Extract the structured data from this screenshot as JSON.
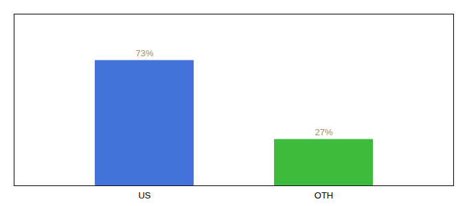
{
  "chart_data": {
    "type": "bar",
    "categories": [
      "US",
      "OTH"
    ],
    "values": [
      73,
      27
    ],
    "value_labels": [
      "73%",
      "27%"
    ],
    "colors": [
      "#4472db",
      "#3dbb3d"
    ],
    "ylim": [
      0,
      100
    ],
    "data_labels": true,
    "tick_labels": "x",
    "grid": false
  }
}
